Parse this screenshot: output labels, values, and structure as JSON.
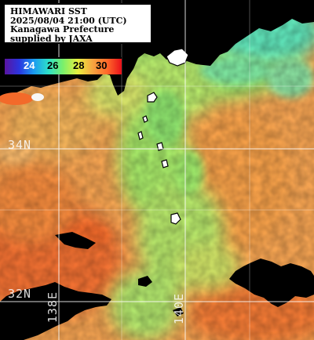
{
  "header": {
    "title": "HIMAWARI SST",
    "timestamp": "2025/08/04 21:00 (UTC)",
    "region": "Kanagawa Prefecture",
    "credit": "supplied by JAXA"
  },
  "color_scale": {
    "ticks": [
      "24",
      "26",
      "28",
      "30"
    ],
    "gradient": [
      "#5a14a0",
      "#2a36e0",
      "#1a9cf0",
      "#2ee0c8",
      "#7cf06a",
      "#e8f040",
      "#f7a540",
      "#ff6a2a",
      "#e8101a"
    ],
    "tick_colors": [
      "#ffffff",
      "#000000",
      "#000000",
      "#000000"
    ]
  },
  "grid_labels": {
    "lat_34": "34N",
    "lat_32": "32N",
    "lon_138": "138E",
    "lon_140": "140E"
  },
  "colors": {
    "warm": "#f4a352",
    "hot": "#f36a2a",
    "cool": "#a6e868",
    "cold": "#58e2b0",
    "land": "#000000",
    "grid": "#ffffff"
  }
}
